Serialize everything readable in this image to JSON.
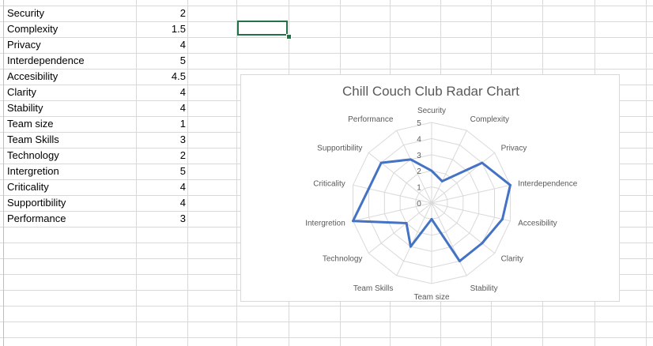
{
  "sheet": {
    "rows": [
      {
        "label": "Security",
        "value": "2"
      },
      {
        "label": "Complexity",
        "value": "1.5"
      },
      {
        "label": "Privacy",
        "value": "4"
      },
      {
        "label": "Interdependence",
        "value": "5"
      },
      {
        "label": "Accesibility",
        "value": "4.5"
      },
      {
        "label": "Clarity",
        "value": "4"
      },
      {
        "label": "Stability",
        "value": "4"
      },
      {
        "label": "Team size",
        "value": "1"
      },
      {
        "label": "Team Skills",
        "value": "3"
      },
      {
        "label": "Technology",
        "value": "2"
      },
      {
        "label": "Intergretion",
        "value": "5"
      },
      {
        "label": "Criticality",
        "value": "4"
      },
      {
        "label": "Supportibility",
        "value": "4"
      },
      {
        "label": "Performance",
        "value": "3"
      }
    ]
  },
  "colors": {
    "series": "#4472c4",
    "grid": "#d9d9d9",
    "selection": "#217346"
  },
  "chart_data": {
    "type": "radar",
    "title": "Chill Couch Club Radar Chart",
    "categories": [
      "Security",
      "Complexity",
      "Privacy",
      "Interdependence",
      "Accesibility",
      "Clarity",
      "Stability",
      "Team size",
      "Team Skills",
      "Technology",
      "Intergretion",
      "Criticality",
      "Supportibility",
      "Performance"
    ],
    "series": [
      {
        "values": [
          2,
          1.5,
          4,
          5,
          4.5,
          4,
          4,
          1,
          3,
          2,
          5,
          4,
          4,
          3
        ]
      }
    ],
    "rlim": [
      0,
      5
    ],
    "ticks": [
      "0",
      "1",
      "2",
      "3",
      "4",
      "5"
    ],
    "legend": "none"
  }
}
